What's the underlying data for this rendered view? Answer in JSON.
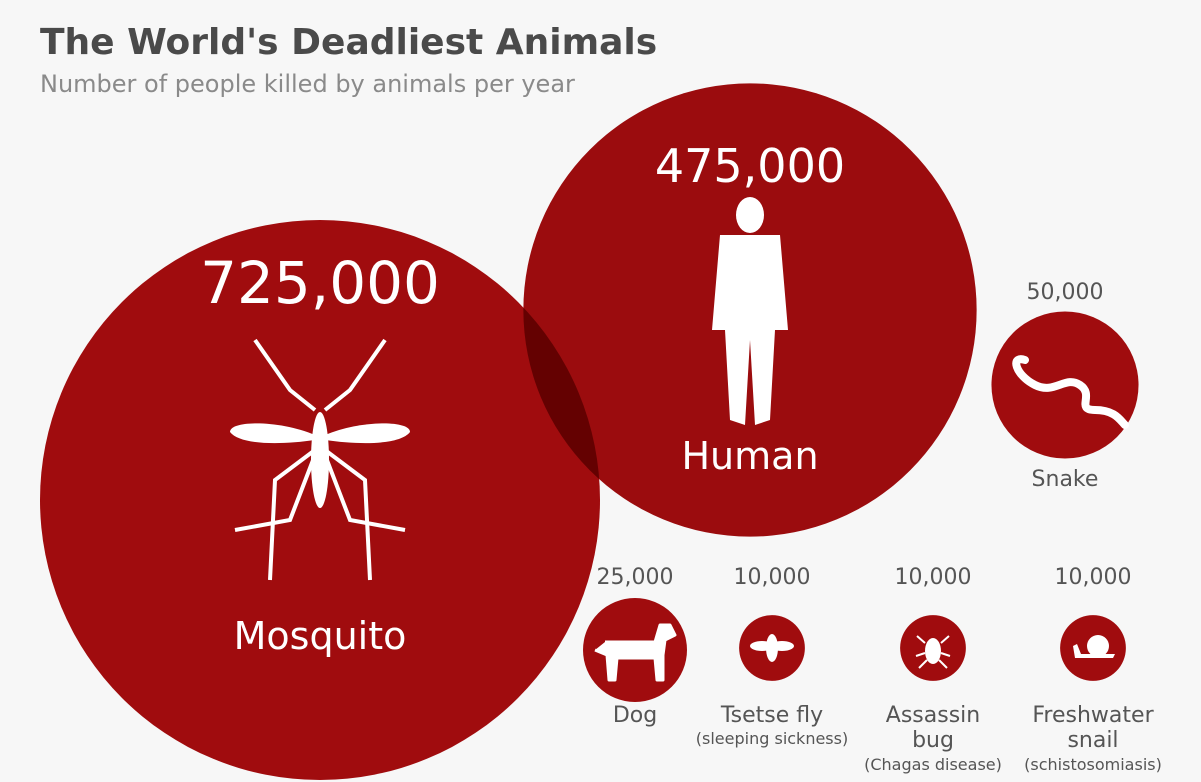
{
  "chart_data": {
    "type": "bubble",
    "title": "The World's Deadliest Animals",
    "subtitle": "Number of people killed by animals per year",
    "categories": [
      "Mosquito",
      "Human",
      "Snake",
      "Dog",
      "Tsetse fly",
      "Assassin bug",
      "Freshwater snail"
    ],
    "notes": [
      null,
      null,
      null,
      null,
      "(sleeping sickness)",
      "(Chagas disease)",
      "(schistosomiasis)"
    ],
    "values": [
      725000,
      475000,
      50000,
      25000,
      10000,
      10000,
      10000
    ],
    "value_labels": [
      "725,000",
      "475,000",
      "50,000",
      "25,000",
      "10,000",
      "10,000",
      "10,000"
    ],
    "color": "#a00c0e"
  }
}
